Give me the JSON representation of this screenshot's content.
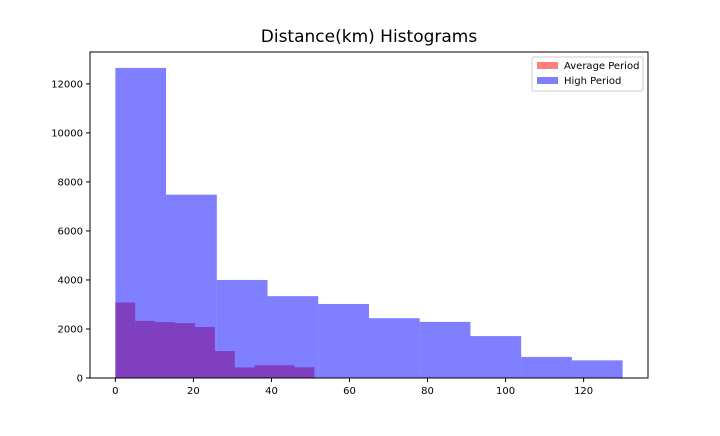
{
  "chart_data": {
    "type": "bar",
    "title": "Distance(km) Histograms",
    "xlabel": "",
    "ylabel": "",
    "xlim": [
      -6.5,
      136.5
    ],
    "ylim": [
      0,
      13300
    ],
    "xticks": [
      0,
      20,
      40,
      60,
      80,
      100,
      120
    ],
    "yticks": [
      0,
      2000,
      4000,
      6000,
      8000,
      10000,
      12000
    ],
    "legend_position": "top-right",
    "series": [
      {
        "name": "Average Period",
        "color": "#ff0000",
        "opacity": 0.5,
        "bin_edges": [
          0,
          5.1,
          10.2,
          15.3,
          20.4,
          25.5,
          30.6,
          35.7,
          40.8,
          45.9,
          51.0
        ],
        "counts": [
          3080,
          2330,
          2280,
          2240,
          2080,
          1100,
          430,
          520,
          520,
          440
        ]
      },
      {
        "name": "High Period",
        "color": "#0000ff",
        "opacity": 0.5,
        "bin_edges": [
          0,
          13,
          26,
          39,
          52,
          65,
          78,
          91,
          104,
          117,
          130
        ],
        "counts": [
          12650,
          7480,
          4000,
          3340,
          3020,
          2440,
          2290,
          1710,
          860,
          720
        ]
      }
    ]
  }
}
